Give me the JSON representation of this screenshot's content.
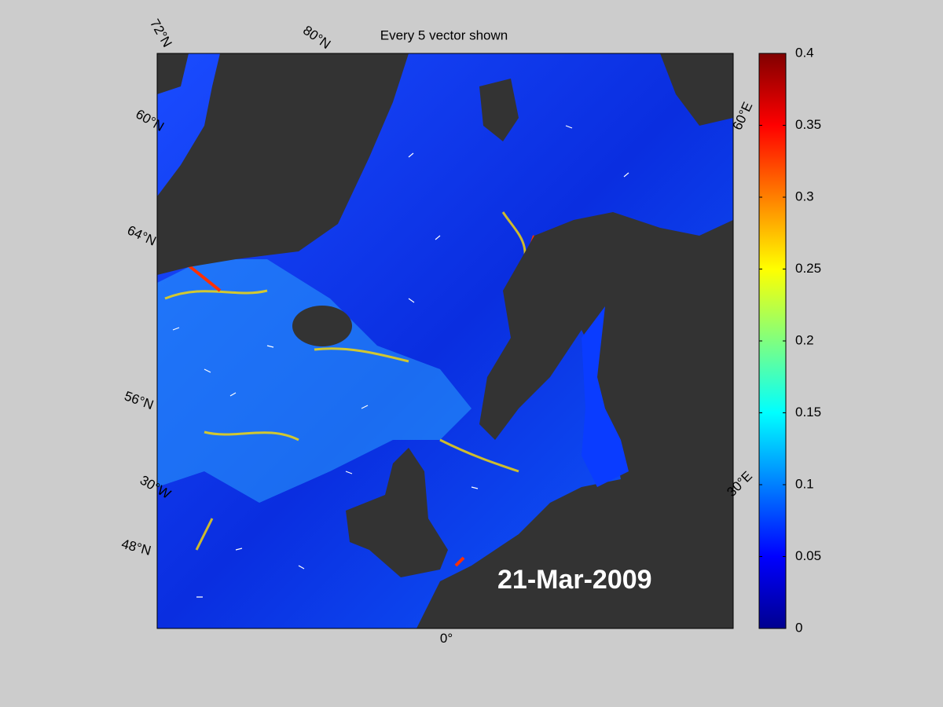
{
  "title": "Every 5 vector shown",
  "date_label": "21-Mar-2009",
  "graticule_labels": [
    "72°N",
    "80°N",
    "60°N",
    "64°N",
    "56°N",
    "30°W",
    "48°N",
    "0°",
    "30°E",
    "60°E"
  ],
  "colorbar": {
    "clim": [
      0,
      0.4
    ],
    "ticks": [
      0,
      0.05,
      0.1,
      0.15,
      0.2,
      0.25,
      0.3,
      0.35,
      0.4
    ],
    "colormap": "jet"
  }
}
